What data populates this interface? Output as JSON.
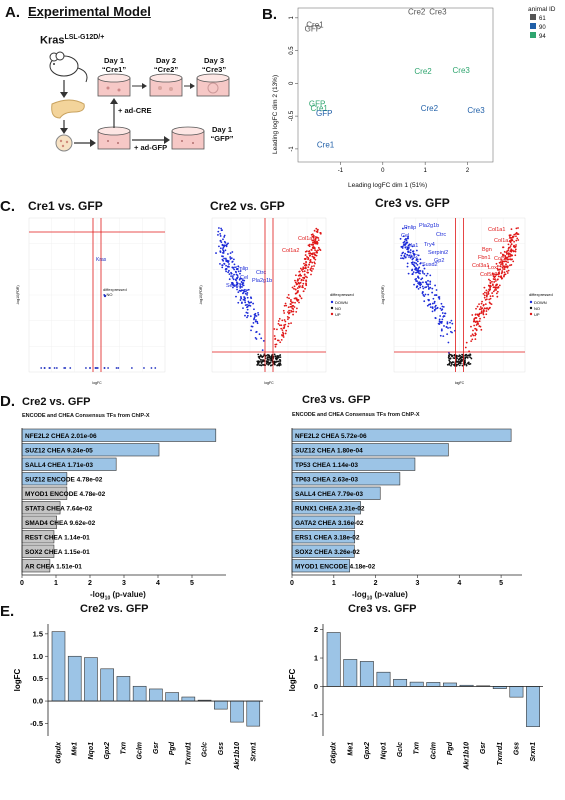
{
  "panelA": {
    "letter": "A.",
    "title": "Experimental Model",
    "genotype": "Kras",
    "genotype_sup": "LSL-G12D/+",
    "days": [
      {
        "day": "Day 1",
        "label": "“Cre1”"
      },
      {
        "day": "Day 2",
        "label": "“Cre2”"
      },
      {
        "day": "Day 3",
        "label": "“Cre3”"
      },
      {
        "day": "Day 1",
        "label": "“GFP”"
      }
    ],
    "treat_cre": "+ ad-CRE",
    "treat_gfp": "+ ad-GFP"
  },
  "panelB": {
    "letter": "B.",
    "xlabel": "Leading logFC dim 1 (51%)",
    "ylabel": "Leading logFC dim 2 (13%)",
    "legend_title": "animal ID",
    "legend": [
      {
        "name": "61",
        "color": "#555555"
      },
      {
        "name": "90",
        "color": "#1f5fa8"
      },
      {
        "name": "94",
        "color": "#2fa56f"
      }
    ],
    "chart_data": {
      "type": "scatter",
      "xlabel": "Leading logFC dim 1 (51%)",
      "ylabel": "Leading logFC dim 2 (13%)",
      "xlim": [
        -2,
        2.6
      ],
      "ylim": [
        -1.2,
        1.15
      ],
      "xticks": [
        "-1",
        "0",
        "1",
        "2"
      ],
      "yticks": [
        "1",
        "0.5",
        "0",
        "-0.5",
        "-1"
      ],
      "legend_position": "top-right",
      "points": [
        {
          "label": "Cre2",
          "x": 0.8,
          "y": 1.05,
          "group": "61"
        },
        {
          "label": "Cre3",
          "x": 1.3,
          "y": 1.05,
          "group": "61"
        },
        {
          "label": "Cre1",
          "x": -1.6,
          "y": 0.85,
          "group": "61"
        },
        {
          "label": "GFP",
          "x": -1.65,
          "y": 0.79,
          "group": "61"
        },
        {
          "label": "Cre2",
          "x": 0.95,
          "y": 0.14,
          "group": "94"
        },
        {
          "label": "Cre3",
          "x": 1.85,
          "y": 0.16,
          "group": "94"
        },
        {
          "label": "GFP",
          "x": -1.55,
          "y": -0.35,
          "group": "94"
        },
        {
          "label": "Cre1",
          "x": -1.5,
          "y": -0.42,
          "group": "94"
        },
        {
          "label": "GFP",
          "x": -1.38,
          "y": -0.5,
          "group": "90"
        },
        {
          "label": "Cre2",
          "x": 1.1,
          "y": -0.42,
          "group": "90"
        },
        {
          "label": "Cre3",
          "x": 2.2,
          "y": -0.45,
          "group": "90"
        },
        {
          "label": "Cre1",
          "x": -1.35,
          "y": -0.98,
          "group": "90"
        }
      ]
    }
  },
  "panelC": {
    "letter": "C.",
    "titles": [
      "Cre1 vs. GFP",
      "Cre2 vs. GFP",
      "Cre3 vs. GFP"
    ],
    "legend_title": "diffexpressed",
    "legend_no": "NO",
    "legend_items": [
      "DOWN",
      "NO",
      "UP"
    ],
    "ylabel": "-log10(FDR)",
    "xlabel": "logFC",
    "kras_label": "Kras",
    "cre2_down_genes": [
      "Pnlip",
      "Ctrc",
      "Cel",
      "Pla2g1b",
      "Sesn1"
    ],
    "cre2_up_genes": [
      "Col1a1",
      "Col1a2"
    ],
    "cre3_down_genes": [
      "Pnlip",
      "Pla2g1b",
      "Cel",
      "Ctrc",
      "Cela1",
      "Try4",
      "Serpini2",
      "Pdia2",
      "Gp2",
      "Susd2"
    ],
    "cre3_up_genes": [
      "Col1a1",
      "Col1a2",
      "Bgn",
      "Fbn1",
      "Col5a1",
      "Col3a1",
      "Lox",
      "Col5a2"
    ]
  },
  "panelD": {
    "letter": "D.",
    "xlabel_main": "-log",
    "xlabel_sub": "10",
    "xlabel_tail": " (p-value)",
    "charts": [
      {
        "type": "bar",
        "title": "Cre2 vs. GFP",
        "subtitle": "ENCODE and CHEA Consensus TFs from ChIP-X",
        "bars": [
          {
            "label": "NFE2L2 CHEA 2.01e-06",
            "value": 5.7,
            "highlight": true
          },
          {
            "label": "SUZ12 CHEA 9.24e-05",
            "value": 4.03,
            "highlight": true
          },
          {
            "label": "SALL4 CHEA 1.71e-03",
            "value": 2.77,
            "highlight": true
          },
          {
            "label": "SUZ12 ENCODE 4.78e-02",
            "value": 1.32,
            "highlight": true
          },
          {
            "label": "MYOD1 ENCODE 4.78e-02",
            "value": 1.32,
            "highlight": false
          },
          {
            "label": "STAT3 CHEA 7.64e-02",
            "value": 1.12,
            "highlight": false
          },
          {
            "label": "SMAD4 CHEA 9.62e-02",
            "value": 1.02,
            "highlight": false
          },
          {
            "label": "REST CHEA 1.14e-01",
            "value": 0.94,
            "highlight": false
          },
          {
            "label": "SOX2 CHEA 1.15e-01",
            "value": 0.94,
            "highlight": false
          },
          {
            "label": "AR CHEA 1.51e-01",
            "value": 0.82,
            "highlight": false
          }
        ],
        "xlim": [
          0,
          6
        ],
        "xticks": [
          "0",
          "1",
          "2",
          "3",
          "4",
          "5"
        ]
      },
      {
        "type": "bar",
        "title": "Cre3 vs. GFP",
        "subtitle": "ENCODE and CHEA Consensus TFs from ChIP-X",
        "bars": [
          {
            "label": "NFE2L2 CHEA 5.72e-06",
            "value": 5.24,
            "highlight": true
          },
          {
            "label": "SUZ12 CHEA 1.80e-04",
            "value": 3.74,
            "highlight": true
          },
          {
            "label": "TP53 CHEA 1.14e-03",
            "value": 2.94,
            "highlight": true
          },
          {
            "label": "TP63 CHEA 2.63e-03",
            "value": 2.58,
            "highlight": true
          },
          {
            "label": "SALL4 CHEA 7.79e-03",
            "value": 2.11,
            "highlight": true
          },
          {
            "label": "RUNX1 CHEA 2.31e-02",
            "value": 1.64,
            "highlight": true
          },
          {
            "label": "GATA2 CHEA 3.16e-02",
            "value": 1.5,
            "highlight": true
          },
          {
            "label": "ERS1 CHEA 3.18e-02",
            "value": 1.5,
            "highlight": true
          },
          {
            "label": "SOX2 CHEA 3.26e-02",
            "value": 1.49,
            "highlight": true
          },
          {
            "label": "MYOD1 ENCODE 4.18e-02",
            "value": 1.38,
            "highlight": true
          }
        ],
        "xlim": [
          0,
          5.5
        ],
        "xticks": [
          "0",
          "1",
          "2",
          "3",
          "4",
          "5"
        ]
      }
    ]
  },
  "panelE": {
    "letter": "E.",
    "ylabel": "logFC",
    "charts": [
      {
        "type": "bar",
        "title": "Cre2 vs. GFP",
        "categories": [
          "G6pdx",
          "Me1",
          "Nqo1",
          "Gpx2",
          "Txn",
          "Gclm",
          "Gsr",
          "Pgd",
          "Txnrd1",
          "Gclc",
          "Gss",
          "Akr1b10",
          "Srxn1"
        ],
        "values": [
          1.55,
          1.0,
          0.97,
          0.72,
          0.55,
          0.33,
          0.27,
          0.19,
          0.09,
          0.02,
          -0.18,
          -0.47,
          -0.56
        ],
        "ylim": [
          -0.78,
          1.72
        ],
        "yticks": [
          1.5,
          1.0,
          0.5,
          0.0,
          -0.5
        ],
        "ytick_labels": [
          "1.5",
          "1.0",
          "0.5",
          "0.0",
          "-0.5"
        ]
      },
      {
        "type": "bar",
        "title": "Cre3 vs. GFP",
        "categories": [
          "G6pdx",
          "Me1",
          "Gpx2",
          "Nqo1",
          "Gclc",
          "Txn",
          "Gclm",
          "Pgd",
          "Akr1b10",
          "Gsr",
          "Txnrd1",
          "Gss",
          "Srxn1"
        ],
        "values": [
          1.9,
          0.95,
          0.88,
          0.5,
          0.25,
          0.15,
          0.14,
          0.12,
          0.04,
          0.02,
          -0.08,
          -0.38,
          -1.42
        ],
        "ylim": [
          -1.75,
          2.2
        ],
        "yticks": [
          2,
          1,
          0,
          -1
        ],
        "ytick_labels": [
          "2",
          "1",
          "0",
          "-1"
        ]
      }
    ]
  }
}
